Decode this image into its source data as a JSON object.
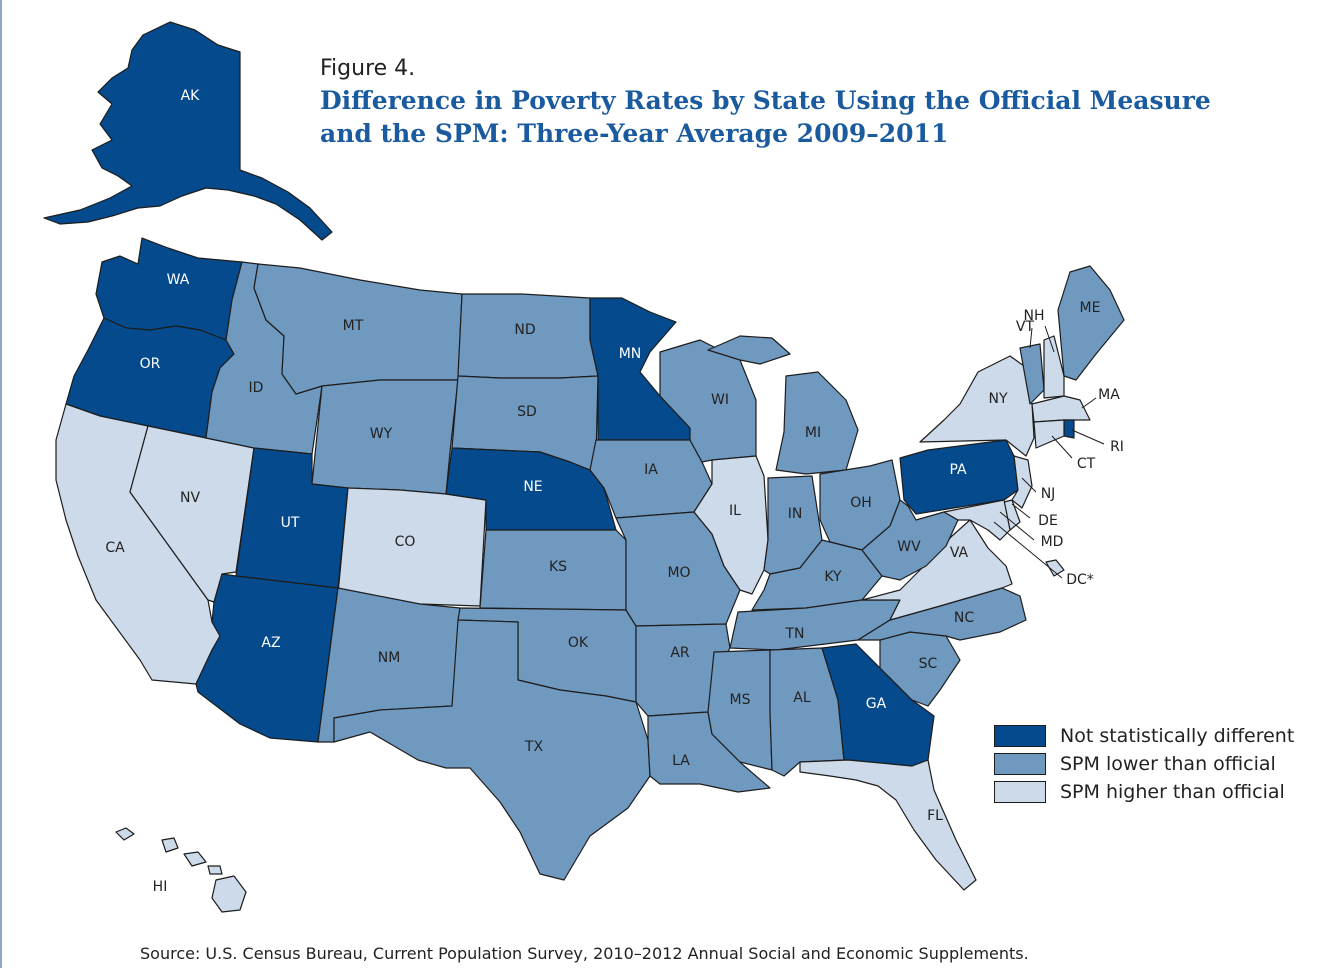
{
  "figure_label": "Figure 4.",
  "title_line1": "Difference in Poverty Rates by State Using the Official Measure",
  "title_line2": "and the SPM: Three-Year Average 2009–2011",
  "source": "Source: U.S. Census Bureau, Current Population Survey,  2010–2012 Annual Social and Economic Supplements.",
  "colors": {
    "not_different": "#044a8c",
    "lower": "#7099c0",
    "higher": "#cddaea"
  },
  "legend": [
    {
      "key": "not_different",
      "label": "Not statistically different"
    },
    {
      "key": "lower",
      "label": "SPM lower than official"
    },
    {
      "key": "higher",
      "label": "SPM higher than official"
    }
  ],
  "states": [
    {
      "abbr": "AK",
      "category": "not_different"
    },
    {
      "abbr": "HI",
      "category": "higher"
    },
    {
      "abbr": "WA",
      "category": "not_different"
    },
    {
      "abbr": "OR",
      "category": "not_different"
    },
    {
      "abbr": "CA",
      "category": "higher"
    },
    {
      "abbr": "NV",
      "category": "higher"
    },
    {
      "abbr": "ID",
      "category": "lower"
    },
    {
      "abbr": "MT",
      "category": "lower"
    },
    {
      "abbr": "WY",
      "category": "lower"
    },
    {
      "abbr": "UT",
      "category": "not_different"
    },
    {
      "abbr": "CO",
      "category": "higher"
    },
    {
      "abbr": "AZ",
      "category": "not_different"
    },
    {
      "abbr": "NM",
      "category": "lower"
    },
    {
      "abbr": "ND",
      "category": "lower"
    },
    {
      "abbr": "SD",
      "category": "lower"
    },
    {
      "abbr": "NE",
      "category": "not_different"
    },
    {
      "abbr": "KS",
      "category": "lower"
    },
    {
      "abbr": "OK",
      "category": "lower"
    },
    {
      "abbr": "TX",
      "category": "lower"
    },
    {
      "abbr": "MN",
      "category": "not_different"
    },
    {
      "abbr": "IA",
      "category": "lower"
    },
    {
      "abbr": "MO",
      "category": "lower"
    },
    {
      "abbr": "AR",
      "category": "lower"
    },
    {
      "abbr": "LA",
      "category": "lower"
    },
    {
      "abbr": "WI",
      "category": "lower"
    },
    {
      "abbr": "IL",
      "category": "higher"
    },
    {
      "abbr": "MI",
      "category": "lower"
    },
    {
      "abbr": "IN",
      "category": "lower"
    },
    {
      "abbr": "OH",
      "category": "lower"
    },
    {
      "abbr": "KY",
      "category": "lower"
    },
    {
      "abbr": "TN",
      "category": "lower"
    },
    {
      "abbr": "MS",
      "category": "lower"
    },
    {
      "abbr": "AL",
      "category": "lower"
    },
    {
      "abbr": "GA",
      "category": "not_different"
    },
    {
      "abbr": "FL",
      "category": "higher"
    },
    {
      "abbr": "SC",
      "category": "lower"
    },
    {
      "abbr": "NC",
      "category": "lower"
    },
    {
      "abbr": "VA",
      "category": "higher"
    },
    {
      "abbr": "WV",
      "category": "lower"
    },
    {
      "abbr": "PA",
      "category": "not_different"
    },
    {
      "abbr": "NY",
      "category": "higher"
    },
    {
      "abbr": "VT",
      "category": "lower"
    },
    {
      "abbr": "NH",
      "category": "higher"
    },
    {
      "abbr": "ME",
      "category": "lower"
    },
    {
      "abbr": "MA",
      "category": "higher"
    },
    {
      "abbr": "RI",
      "category": "not_different"
    },
    {
      "abbr": "CT",
      "category": "higher"
    },
    {
      "abbr": "NJ",
      "category": "higher"
    },
    {
      "abbr": "DE",
      "category": "higher"
    },
    {
      "abbr": "MD",
      "category": "higher"
    },
    {
      "abbr": "DC*",
      "category": "higher"
    }
  ]
}
